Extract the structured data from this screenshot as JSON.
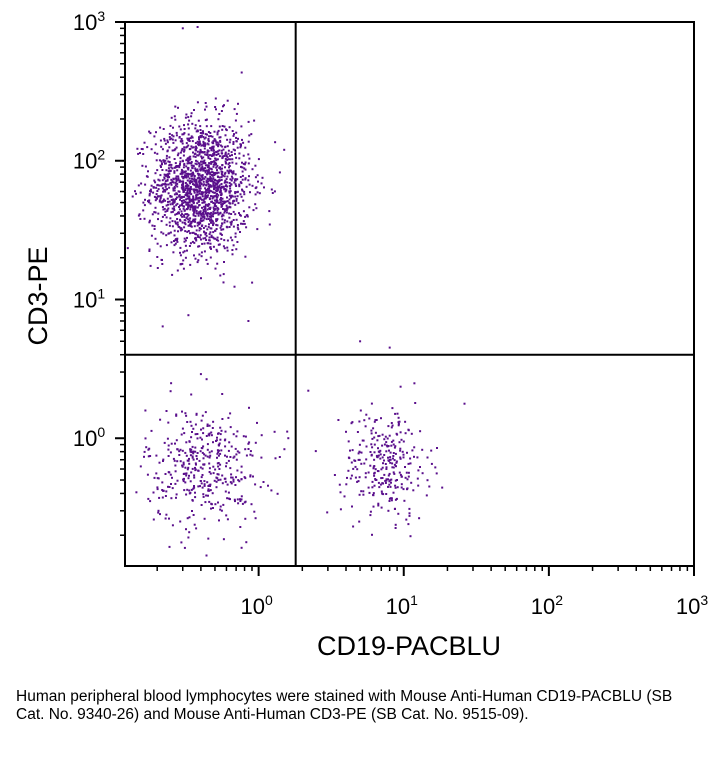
{
  "chart_data": {
    "type": "scatter",
    "title": "",
    "xlabel": "CD19-PACBLU",
    "ylabel": "CD3-PE",
    "x_scale": "log",
    "y_scale": "log",
    "xlim": [
      0.12,
      1000
    ],
    "ylim": [
      0.12,
      1000
    ],
    "x_ticks": [
      {
        "value": 1,
        "base": "10",
        "exp": "0"
      },
      {
        "value": 10,
        "base": "10",
        "exp": "1"
      },
      {
        "value": 100,
        "base": "10",
        "exp": "2"
      },
      {
        "value": 1000,
        "base": "10",
        "exp": "3"
      }
    ],
    "y_ticks": [
      {
        "value": 1,
        "base": "10",
        "exp": "0"
      },
      {
        "value": 10,
        "base": "10",
        "exp": "1"
      },
      {
        "value": 100,
        "base": "10",
        "exp": "2"
      },
      {
        "value": 1000,
        "base": "10",
        "exp": "3"
      }
    ],
    "gates": {
      "x": 1.8,
      "y": 4.0
    },
    "grid": false,
    "legend": "none",
    "point_color": "#5a0f8c",
    "populations": [
      {
        "x_median": 0.4,
        "y_median": 65,
        "x_spread_log10": 0.17,
        "y_spread_log10": 0.24,
        "count": 1700
      },
      {
        "x_median": 0.42,
        "y_median": 0.62,
        "x_spread_log10": 0.2,
        "y_spread_log10": 0.22,
        "count": 420
      },
      {
        "x_median": 7.5,
        "y_median": 0.65,
        "x_spread_log10": 0.15,
        "y_spread_log10": 0.2,
        "count": 300
      }
    ],
    "outliers": [
      {
        "x": 0.3,
        "y": 900
      },
      {
        "x": 0.38,
        "y": 920
      },
      {
        "x": 1.5,
        "y": 120
      },
      {
        "x": 0.85,
        "y": 7
      },
      {
        "x": 5.0,
        "y": 5.0
      },
      {
        "x": 8.0,
        "y": 4.5
      },
      {
        "x": 2.2,
        "y": 2.2
      },
      {
        "x": 1.6,
        "y": 1.0
      },
      {
        "x": 0.4,
        "y": 2.9
      }
    ]
  },
  "caption": "Human peripheral blood lymphocytes were stained with Mouse Anti-Human CD19-PACBLU (SB Cat. No. 9340-26) and Mouse Anti-Human CD3-PE (SB Cat. No. 9515-09)."
}
